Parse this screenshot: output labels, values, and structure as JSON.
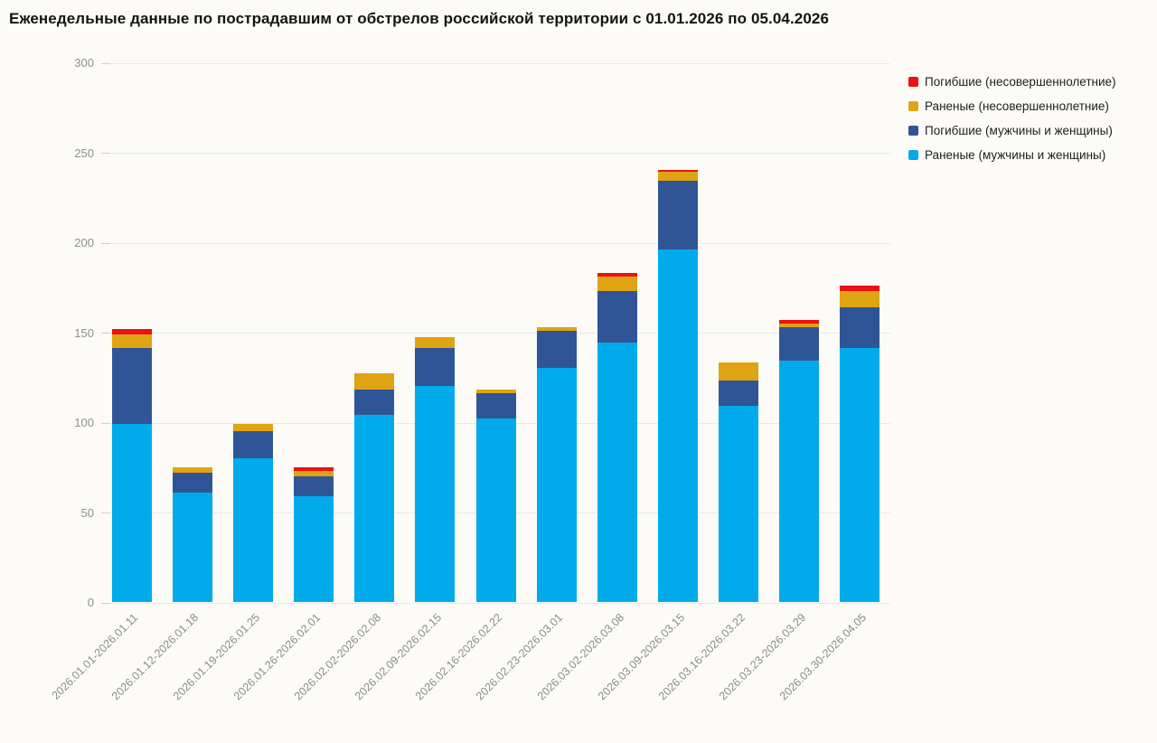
{
  "title": "Еженедельные данные по пострадавшим от обстрелов российской территории с 01.01.2026 по 05.04.2026",
  "colors": {
    "background": "#fcfbf7",
    "grid": "#e9e9e7",
    "axis_text": "#8f8f8f",
    "wounded_adults": "#00abeb",
    "killed_adults": "#2f5597",
    "wounded_minors": "#e0a312",
    "killed_minors": "#ea1212"
  },
  "chart_data": {
    "type": "bar",
    "stacked": true,
    "title": "Еженедельные данные по пострадавшим от обстрелов российской территории с 01.01.2026 по 05.04.2026",
    "xlabel": "",
    "ylabel": "",
    "ylim": [
      0,
      300
    ],
    "yticks": [
      0,
      50,
      100,
      150,
      200,
      250,
      300
    ],
    "grid": true,
    "categories": [
      "2026.01.01-2026.01.11",
      "2026.01.12-2026.01.18",
      "2026.01.19-2026.01.25",
      "2026.01.26-2026.02.01",
      "2026.02.02-2026.02.08",
      "2026.02.09-2026.02.15",
      "2026.02.16-2026.02.22",
      "2026.02.23-2026.03.01",
      "2026.03.02-2026.03.08",
      "2026.03.09-2026.03.15",
      "2026.03.16-2026.03.22",
      "2026.03.23-2026.03.29",
      "2026.03.30-2026.04.05"
    ],
    "series": [
      {
        "name": "Раненые (мужчины и женщины)",
        "color": "#00abeb",
        "values": [
          99,
          61,
          80,
          59,
          104,
          120,
          102,
          130,
          144,
          196,
          109,
          134,
          141
        ]
      },
      {
        "name": "Погибшие (мужчины и женщины)",
        "color": "#2f5597",
        "values": [
          42,
          11,
          15,
          11,
          14,
          21,
          14,
          21,
          29,
          38,
          14,
          19,
          23
        ]
      },
      {
        "name": "Раненые (несовершеннолетние)",
        "color": "#e0a312",
        "values": [
          8,
          3,
          4,
          3,
          9,
          6,
          2,
          2,
          8,
          5,
          10,
          2,
          9
        ]
      },
      {
        "name": "Погибшие (несовершеннолетние)",
        "color": "#ea1212",
        "values": [
          3,
          0,
          0,
          2,
          0,
          0,
          0,
          0,
          2,
          1,
          0,
          2,
          3
        ]
      }
    ],
    "legend": {
      "position": "top-right",
      "entries": [
        "Погибшие (несовершеннолетние)",
        "Раненые (несовершеннолетние)",
        "Погибшие (мужчины и женщины)",
        "Раненые (мужчины и женщины)"
      ]
    }
  }
}
